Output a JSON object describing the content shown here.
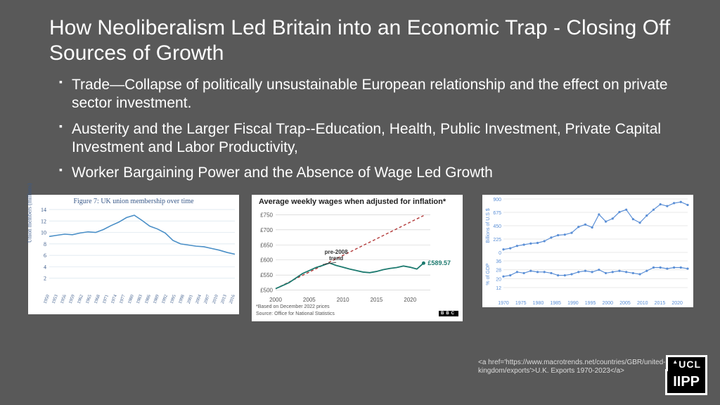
{
  "title": "How Neoliberalism Led Britain into an Economic Trap - Closing Off Sources of Growth",
  "bullets": [
    "Trade—Collapse of politically unsustainable European relationship and the effect on private sector investment.",
    "Austerity and the Larger Fiscal Trap--Education, Health, Public Investment, Private Capital Investment and Labor Productivity,",
    "Worker Bargaining Power and the Absence of Wage Led Growth"
  ],
  "chart1": {
    "type": "line",
    "title": "Figure 7: UK union membership over time",
    "ylabel": "Union members (millions)",
    "x_labels": [
      "1950",
      "1953",
      "1956",
      "1959",
      "1962",
      "1965",
      "1968",
      "1971",
      "1974",
      "1977",
      "1980",
      "1983",
      "1986",
      "1989",
      "1992",
      "1995",
      "1998",
      "2001",
      "2004",
      "2007",
      "2010",
      "2013",
      "2016"
    ],
    "y_ticks": [
      2,
      4,
      6,
      8,
      10,
      12,
      14
    ],
    "ylim": [
      0,
      14
    ],
    "values": [
      9.3,
      9.5,
      9.7,
      9.6,
      9.9,
      10.1,
      10.0,
      10.5,
      11.2,
      11.8,
      12.6,
      13.0,
      12.1,
      11.1,
      10.6,
      9.9,
      8.6,
      8.0,
      7.8,
      7.6,
      7.5,
      7.2,
      6.9,
      6.5,
      6.2
    ],
    "line_color": "#4a8fc7",
    "grid_color": "#d7e3ee",
    "background": "#ffffff",
    "label_color": "#3a5a8a",
    "label_fontsize": 8
  },
  "chart2": {
    "type": "line",
    "title": "Average weekly wages when adjusted for inflation*",
    "x_ticks": [
      2000,
      2005,
      2010,
      2015,
      2020
    ],
    "xlim": [
      2000,
      2023
    ],
    "y_ticks": [
      500,
      550,
      600,
      650,
      700,
      750
    ],
    "ylim": [
      490,
      760
    ],
    "actual": [
      505,
      515,
      525,
      540,
      555,
      565,
      575,
      582,
      590,
      582,
      576,
      570,
      565,
      560,
      558,
      562,
      568,
      572,
      575,
      580,
      576,
      570,
      589.57
    ],
    "trend": [
      505,
      516,
      527,
      538,
      549,
      560,
      571,
      582,
      593,
      604,
      615,
      626,
      637,
      648,
      659,
      670,
      681,
      692,
      703,
      714,
      725,
      736,
      747
    ],
    "annotation": "pre-2008 trend",
    "end_label": "£589.57",
    "end_label_color": "#1d7a6f",
    "footnote": "*Based on December 2022 prices",
    "source": "Source: Office for National Statistics",
    "source_badge": "BBC",
    "actual_color": "#1d7a6f",
    "trend_color": "#b33a3a",
    "trend_dash": "4 3",
    "grid_color": "#cccccc",
    "background": "#ffffff"
  },
  "chart3": {
    "type": "line",
    "x_ticks": [
      1970,
      1975,
      1980,
      1985,
      1990,
      1995,
      2000,
      2005,
      2010,
      2015,
      2020
    ],
    "xlim": [
      1970,
      2023
    ],
    "top": {
      "ylabel": "Billions of U.S $",
      "ylim": [
        0,
        900
      ],
      "values": [
        50,
        70,
        110,
        130,
        150,
        160,
        190,
        250,
        290,
        300,
        330,
        430,
        470,
        420,
        640,
        520,
        570,
        680,
        720,
        560,
        500,
        620,
        720,
        810,
        780,
        830,
        850,
        800
      ]
    },
    "bottom": {
      "ylabel": "% of GDP",
      "ylim": [
        12,
        36
      ],
      "values": [
        22,
        23,
        26,
        25,
        27,
        26,
        26,
        25,
        23,
        23,
        24,
        26,
        27,
        26,
        28,
        25,
        26,
        27,
        26,
        25,
        24,
        27,
        30,
        30,
        29,
        30,
        30,
        29
      ]
    },
    "line_color": "#5b8fd6",
    "marker_color": "#5b8fd6",
    "grid_color": "#e8e8e8",
    "background": "#ffffff"
  },
  "citation": "<a href='https://www.macrotrends.net/countries/GBR/united-kingdom/exports'>U.K. Exports 1970-2023</a>",
  "logos": {
    "top": "UCL",
    "bottom": "IIPP"
  }
}
